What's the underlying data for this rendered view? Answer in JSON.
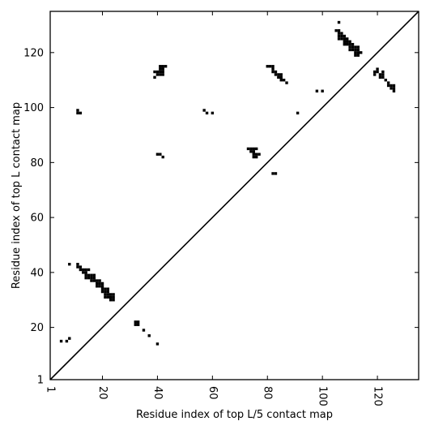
{
  "chart_data": {
    "type": "scatter",
    "title": "",
    "xlabel": "Residue index of top L/5 contact map",
    "ylabel": "Residue index of top L contact map",
    "xlim": [
      1,
      135
    ],
    "ylim": [
      1,
      135
    ],
    "grid": false,
    "legend": "none",
    "xticks": [
      1,
      20,
      40,
      60,
      80,
      100,
      120
    ],
    "yticks": [
      1,
      20,
      40,
      60,
      80,
      100,
      120
    ],
    "diagonal": {
      "from": [
        1,
        1
      ],
      "to": [
        135,
        135
      ]
    },
    "colors": {
      "point": "#000000",
      "axis": "#000000",
      "background": "#ffffff"
    },
    "series": [
      {
        "points": [
          [
            5,
            15
          ],
          [
            7,
            15
          ],
          [
            8,
            16
          ],
          [
            8,
            43
          ],
          [
            11,
            43
          ],
          [
            11,
            42
          ],
          [
            12,
            42
          ],
          [
            12,
            41
          ],
          [
            13,
            41
          ],
          [
            13,
            40
          ],
          [
            14,
            40
          ],
          [
            14,
            41
          ],
          [
            15,
            41
          ],
          [
            14,
            39
          ],
          [
            15,
            39
          ],
          [
            14,
            38
          ],
          [
            15,
            38
          ],
          [
            16,
            39
          ],
          [
            17,
            39
          ],
          [
            16,
            38
          ],
          [
            17,
            38
          ],
          [
            16,
            37
          ],
          [
            17,
            37
          ],
          [
            18,
            37
          ],
          [
            18,
            36
          ],
          [
            19,
            37
          ],
          [
            19,
            36
          ],
          [
            20,
            36
          ],
          [
            18,
            35
          ],
          [
            19,
            35
          ],
          [
            20,
            35
          ],
          [
            20,
            34
          ],
          [
            21,
            34
          ],
          [
            22,
            34
          ],
          [
            20,
            33
          ],
          [
            21,
            33
          ],
          [
            22,
            33
          ],
          [
            21,
            32
          ],
          [
            22,
            32
          ],
          [
            23,
            32
          ],
          [
            24,
            32
          ],
          [
            21,
            31
          ],
          [
            22,
            31
          ],
          [
            23,
            31
          ],
          [
            24,
            31
          ],
          [
            23,
            30
          ],
          [
            24,
            30
          ],
          [
            11,
            99
          ],
          [
            11,
            98
          ],
          [
            12,
            98
          ],
          [
            32,
            22
          ],
          [
            33,
            22
          ],
          [
            32,
            21
          ],
          [
            33,
            21
          ],
          [
            35,
            19
          ],
          [
            37,
            17
          ],
          [
            40,
            14
          ],
          [
            39,
            113
          ],
          [
            40,
            113
          ],
          [
            41,
            113
          ],
          [
            42,
            113
          ],
          [
            41,
            114
          ],
          [
            42,
            114
          ],
          [
            41,
            115
          ],
          [
            42,
            115
          ],
          [
            43,
            115
          ],
          [
            40,
            112
          ],
          [
            41,
            112
          ],
          [
            42,
            112
          ],
          [
            39,
            111
          ],
          [
            40,
            83
          ],
          [
            41,
            83
          ],
          [
            42,
            82
          ],
          [
            57,
            99
          ],
          [
            58,
            98
          ],
          [
            60,
            98
          ],
          [
            73,
            85
          ],
          [
            74,
            85
          ],
          [
            75,
            85
          ],
          [
            76,
            85
          ],
          [
            74,
            84
          ],
          [
            75,
            84
          ],
          [
            75,
            83
          ],
          [
            76,
            83
          ],
          [
            77,
            83
          ],
          [
            75,
            82
          ],
          [
            76,
            82
          ],
          [
            82,
            76
          ],
          [
            83,
            76
          ],
          [
            80,
            115
          ],
          [
            81,
            115
          ],
          [
            82,
            115
          ],
          [
            82,
            114
          ],
          [
            82,
            113
          ],
          [
            83,
            113
          ],
          [
            83,
            112
          ],
          [
            84,
            112
          ],
          [
            85,
            112
          ],
          [
            84,
            111
          ],
          [
            85,
            111
          ],
          [
            85,
            110
          ],
          [
            86,
            110
          ],
          [
            87,
            109
          ],
          [
            91,
            98
          ],
          [
            98,
            106
          ],
          [
            100,
            106
          ],
          [
            106,
            131
          ],
          [
            105,
            128
          ],
          [
            106,
            128
          ],
          [
            106,
            127
          ],
          [
            107,
            127
          ],
          [
            106,
            126
          ],
          [
            107,
            126
          ],
          [
            108,
            126
          ],
          [
            106,
            125
          ],
          [
            107,
            125
          ],
          [
            108,
            125
          ],
          [
            109,
            125
          ],
          [
            108,
            124
          ],
          [
            109,
            124
          ],
          [
            110,
            124
          ],
          [
            108,
            123
          ],
          [
            109,
            123
          ],
          [
            110,
            123
          ],
          [
            111,
            123
          ],
          [
            110,
            122
          ],
          [
            111,
            122
          ],
          [
            112,
            122
          ],
          [
            113,
            122
          ],
          [
            110,
            121
          ],
          [
            111,
            121
          ],
          [
            112,
            121
          ],
          [
            113,
            121
          ],
          [
            112,
            120
          ],
          [
            113,
            120
          ],
          [
            114,
            120
          ],
          [
            112,
            119
          ],
          [
            113,
            119
          ],
          [
            120,
            114
          ],
          [
            119,
            113
          ],
          [
            120,
            113
          ],
          [
            122,
            113
          ],
          [
            119,
            112
          ],
          [
            121,
            112
          ],
          [
            122,
            112
          ],
          [
            121,
            111
          ],
          [
            122,
            111
          ],
          [
            123,
            110
          ],
          [
            124,
            109
          ],
          [
            124,
            108
          ],
          [
            125,
            108
          ],
          [
            126,
            108
          ],
          [
            125,
            107
          ],
          [
            126,
            107
          ],
          [
            126,
            106
          ]
        ]
      }
    ]
  }
}
